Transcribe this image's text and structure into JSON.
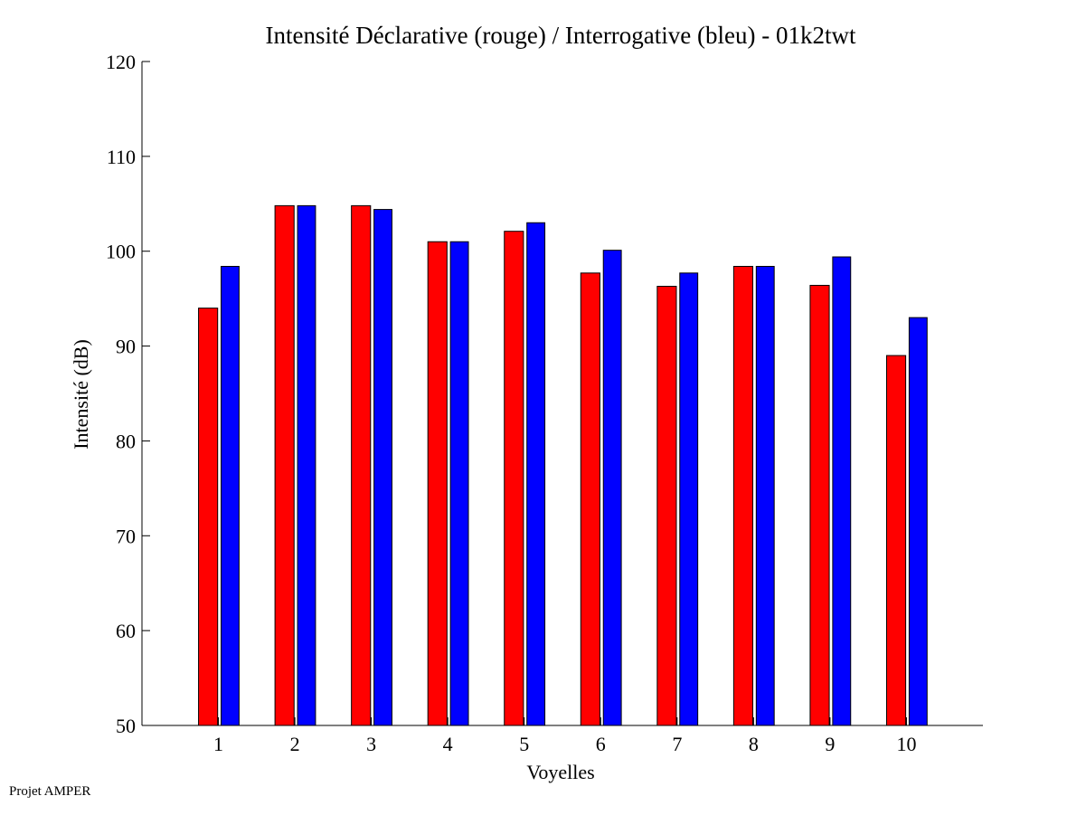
{
  "chart_data": {
    "type": "bar",
    "title": "Intensité Déclarative (rouge) / Interrogative (bleu) - 01k2twt",
    "xlabel": "Voyelles",
    "ylabel": "Intensité (dB)",
    "categories": [
      "1",
      "2",
      "3",
      "4",
      "5",
      "6",
      "7",
      "8",
      "9",
      "10"
    ],
    "series": [
      {
        "name": "Déclarative (rouge)",
        "color": "#ff0000",
        "values": [
          94.0,
          104.8,
          104.8,
          101.0,
          102.1,
          97.7,
          96.3,
          98.4,
          96.4,
          89.0
        ]
      },
      {
        "name": "Interrogative (bleu)",
        "color": "#0000ff",
        "values": [
          98.4,
          104.8,
          104.4,
          101.0,
          103.0,
          100.1,
          97.7,
          98.4,
          99.4,
          93.0
        ]
      }
    ],
    "xlim": [
      0,
      11
    ],
    "ylim": [
      50,
      120
    ],
    "yticks": [
      "50",
      "60",
      "70",
      "80",
      "90",
      "100",
      "110",
      "120"
    ],
    "grid": false,
    "legend": "none"
  },
  "footer": "Projet AMPER"
}
